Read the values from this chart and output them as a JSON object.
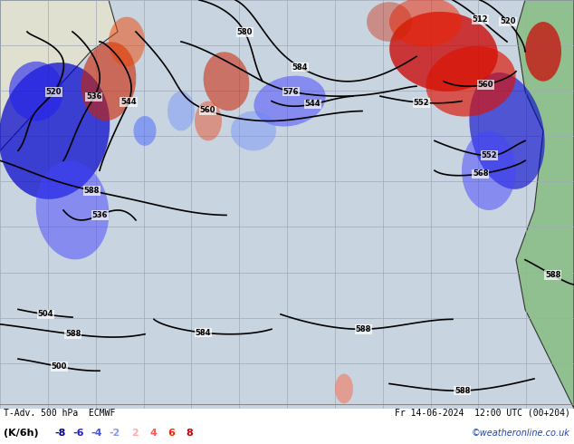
{
  "title_left": "T-Adv. 500 hPa  ECMWF",
  "title_right": "Fr 14-06-2024  12:00 UTC (00+204)",
  "legend_label": "(K/6h)",
  "legend_values": [
    "-8",
    "-6",
    "-4",
    "-2",
    "2",
    "4",
    "6",
    "8"
  ],
  "legend_colors_neg": [
    "#00008B",
    "#0000FF",
    "#4169E1",
    "#6495ED"
  ],
  "legend_colors_pos": [
    "#FF6347",
    "#FF4500",
    "#FF0000",
    "#8B0000"
  ],
  "watermark": "©weatheronline.co.uk",
  "background_color": "#d0d8e8",
  "land_color": "#e8e8e8",
  "coast_color": "#000000",
  "grid_color": "#b0b8c8",
  "contour_color": "#000000",
  "figsize": [
    6.34,
    4.9
  ],
  "dpi": 100
}
